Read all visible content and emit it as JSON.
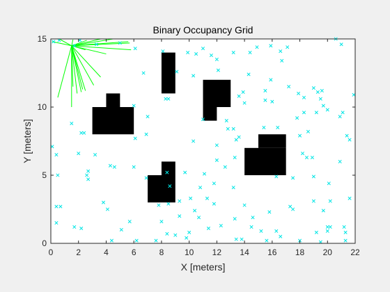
{
  "chart_data": {
    "type": "scatter",
    "title": "Binary Occupancy Grid",
    "xlabel": "X [meters]",
    "ylabel": "Y [meters]",
    "xlim": [
      0,
      22
    ],
    "ylim": [
      0,
      15
    ],
    "xticks": [
      "0",
      "2",
      "4",
      "6",
      "8",
      "10",
      "12",
      "14",
      "16",
      "18",
      "20",
      "22"
    ],
    "yticks": [
      "0",
      "5",
      "10",
      "15"
    ],
    "grid": false,
    "colors": {
      "obstacle": "#000000",
      "particles": "#00e5e5",
      "rays": "#00ff00",
      "axes": "#262626"
    },
    "obstacles": [
      {
        "x0": 3.0,
        "x1": 6.0,
        "y0": 8.0,
        "y1": 10.0
      },
      {
        "x0": 4.0,
        "x1": 5.0,
        "y0": 10.0,
        "y1": 11.0
      },
      {
        "x0": 8.0,
        "x1": 9.0,
        "y0": 11.0,
        "y1": 14.0
      },
      {
        "x0": 11.0,
        "x1": 13.0,
        "y0": 10.0,
        "y1": 12.0
      },
      {
        "x0": 11.0,
        "x1": 12.0,
        "y0": 9.0,
        "y1": 10.0
      },
      {
        "x0": 15.0,
        "x1": 17.0,
        "y0": 7.0,
        "y1": 8.0
      },
      {
        "x0": 14.0,
        "x1": 17.0,
        "y0": 5.0,
        "y1": 7.0
      },
      {
        "x0": 7.0,
        "x1": 9.0,
        "y0": 3.0,
        "y1": 5.0
      },
      {
        "x0": 8.0,
        "x1": 9.0,
        "y0": 5.0,
        "y1": 6.0
      }
    ],
    "robot_position": [
      1.5,
      14.5
    ],
    "rays_end": [
      [
        0.1,
        14.8
      ],
      [
        0.6,
        15.0
      ],
      [
        1.6,
        14.95
      ],
      [
        2.6,
        14.9
      ],
      [
        3.6,
        15.0
      ],
      [
        4.5,
        15.0
      ],
      [
        5.6,
        14.8
      ],
      [
        5.7,
        14.7
      ],
      [
        5.8,
        14.2
      ],
      [
        2.5,
        14.2
      ],
      [
        4.0,
        13.9
      ],
      [
        3.6,
        12.2
      ],
      [
        3.1,
        11.6
      ],
      [
        2.2,
        11.1
      ],
      [
        1.9,
        11.0
      ],
      [
        1.5,
        10.0
      ],
      [
        0.5,
        10.7
      ],
      [
        2.3,
        11.3
      ],
      [
        1.6,
        11.5
      ],
      [
        2.5,
        11.2
      ]
    ],
    "particles": [
      [
        0.2,
        14.8
      ],
      [
        0.6,
        14.9
      ],
      [
        1.7,
        14.5
      ],
      [
        2.1,
        14.9
      ],
      [
        3.3,
        14.6
      ],
      [
        5.0,
        14.7
      ],
      [
        6.1,
        14.3
      ],
      [
        8.1,
        14.1
      ],
      [
        9.9,
        14.0
      ],
      [
        10.5,
        13.9
      ],
      [
        11.0,
        14.3
      ],
      [
        11.6,
        13.8
      ],
      [
        13.2,
        14.0
      ],
      [
        14.4,
        14.0
      ],
      [
        14.9,
        14.4
      ],
      [
        15.9,
        14.5
      ],
      [
        16.6,
        14.1
      ],
      [
        17.1,
        14.4
      ],
      [
        16.7,
        13.4
      ],
      [
        20.6,
        15.0
      ],
      [
        21.0,
        14.6
      ],
      [
        12.0,
        13.5
      ],
      [
        10.3,
        12.3
      ],
      [
        6.7,
        12.5
      ],
      [
        9.1,
        12.6
      ],
      [
        12.1,
        12.7
      ],
      [
        14.3,
        12.4
      ],
      [
        15.9,
        12.0
      ],
      [
        15.5,
        11.2
      ],
      [
        17.2,
        11.5
      ],
      [
        19.0,
        11.4
      ],
      [
        19.3,
        11.1
      ],
      [
        19.6,
        11.2
      ],
      [
        17.9,
        11.0
      ],
      [
        18.3,
        10.7
      ],
      [
        19.5,
        10.6
      ],
      [
        21.9,
        10.9
      ],
      [
        13.9,
        11.1
      ],
      [
        14.0,
        10.3
      ],
      [
        13.6,
        10.8
      ],
      [
        15.5,
        10.5
      ],
      [
        16.0,
        10.4
      ],
      [
        19.7,
        10.1
      ],
      [
        20.0,
        9.8
      ],
      [
        18.3,
        9.6
      ],
      [
        19.2,
        9.6
      ],
      [
        21.1,
        9.6
      ],
      [
        20.9,
        9.3
      ],
      [
        6.0,
        10.1
      ],
      [
        7.0,
        9.3
      ],
      [
        8.3,
        10.6
      ],
      [
        8.5,
        10.6
      ],
      [
        12.7,
        9.0
      ],
      [
        13.2,
        8.4
      ],
      [
        11.0,
        9.1
      ],
      [
        12.8,
        8.4
      ],
      [
        6.9,
        8.0
      ],
      [
        6.1,
        7.7
      ],
      [
        1.5,
        8.8
      ],
      [
        2.4,
        8.1
      ],
      [
        2.2,
        8.1
      ],
      [
        10.3,
        7.5
      ],
      [
        12.0,
        7.2
      ],
      [
        12.0,
        6.1
      ],
      [
        13.4,
        7.6
      ],
      [
        13.6,
        7.8
      ],
      [
        16.4,
        8.5
      ],
      [
        15.4,
        8.5
      ],
      [
        17.8,
        9.2
      ],
      [
        18.0,
        7.9
      ],
      [
        18.6,
        8.2
      ],
      [
        21.4,
        7.9
      ],
      [
        21.6,
        7.6
      ],
      [
        0.1,
        7.1
      ],
      [
        0.4,
        6.5
      ],
      [
        2.0,
        6.6
      ],
      [
        3.2,
        6.5
      ],
      [
        4.3,
        5.7
      ],
      [
        4.6,
        5.6
      ],
      [
        6.0,
        5.6
      ],
      [
        8.4,
        5.2
      ],
      [
        9.7,
        5.2
      ],
      [
        11.1,
        5.1
      ],
      [
        12.6,
        5.6
      ],
      [
        13.3,
        6.3
      ],
      [
        18.2,
        6.6
      ],
      [
        18.5,
        6.3
      ],
      [
        18.9,
        6.3
      ],
      [
        20.9,
        6.0
      ],
      [
        2.7,
        5.3
      ],
      [
        2.6,
        5.0
      ],
      [
        2.7,
        4.7
      ],
      [
        0.5,
        5.0
      ],
      [
        8.6,
        4.2
      ],
      [
        11.8,
        4.4
      ],
      [
        13.2,
        4.1
      ],
      [
        16.3,
        4.9
      ],
      [
        17.5,
        4.8
      ],
      [
        19.0,
        4.9
      ],
      [
        20.1,
        4.4
      ],
      [
        6.9,
        4.8
      ],
      [
        10.8,
        4.1
      ],
      [
        3.8,
        3.0
      ],
      [
        4.1,
        2.5
      ],
      [
        0.4,
        2.7
      ],
      [
        0.7,
        2.7
      ],
      [
        7.8,
        2.8
      ],
      [
        8.5,
        2.9
      ],
      [
        9.3,
        3.1
      ],
      [
        10.1,
        3.3
      ],
      [
        11.3,
        3.3
      ],
      [
        11.8,
        2.9
      ],
      [
        10.4,
        2.4
      ],
      [
        14.0,
        2.8
      ],
      [
        17.3,
        2.7
      ],
      [
        17.5,
        2.5
      ],
      [
        19.0,
        3.1
      ],
      [
        20.2,
        3.1
      ],
      [
        21.6,
        3.3
      ],
      [
        15.8,
        2.3
      ],
      [
        13.3,
        1.8
      ],
      [
        14.6,
        1.9
      ],
      [
        19.7,
        2.4
      ],
      [
        5.7,
        1.6
      ],
      [
        8.0,
        1.6
      ],
      [
        9.3,
        2.0
      ],
      [
        10.7,
        1.9
      ],
      [
        0.4,
        1.5
      ],
      [
        1.7,
        1.2
      ],
      [
        2.2,
        1.1
      ],
      [
        5.1,
        1.0
      ],
      [
        8.4,
        0.7
      ],
      [
        9.0,
        0.6
      ],
      [
        10.0,
        0.8
      ],
      [
        11.4,
        1.1
      ],
      [
        12.3,
        1.3
      ],
      [
        14.5,
        1.2
      ],
      [
        15.2,
        0.9
      ],
      [
        16.3,
        0.9
      ],
      [
        16.6,
        0.5
      ],
      [
        19.2,
        0.8
      ],
      [
        20.0,
        0.9
      ],
      [
        20.0,
        1.2
      ],
      [
        20.2,
        1.2
      ],
      [
        21.2,
        1.2
      ],
      [
        21.3,
        0.8
      ],
      [
        4.4,
        0.2
      ],
      [
        9.8,
        0.4
      ],
      [
        13.4,
        0.3
      ],
      [
        15.6,
        0.2
      ],
      [
        18.0,
        0.2
      ],
      [
        19.5,
        0.1
      ],
      [
        21.3,
        0.2
      ],
      [
        13.8,
        0.3
      ],
      [
        6.2,
        0.2
      ],
      [
        7.6,
        0.2
      ]
    ]
  }
}
